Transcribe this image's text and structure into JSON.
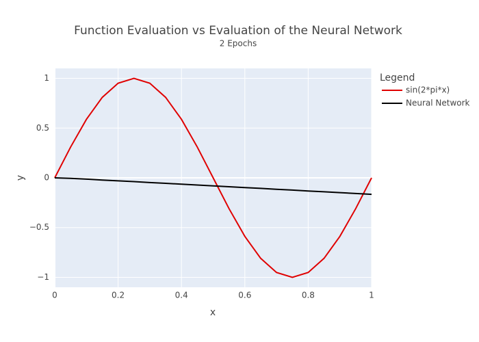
{
  "chart_data": {
    "type": "line",
    "title": "Function Evaluation vs Evaluation of the Neural Network",
    "subtitle": "2 Epochs",
    "x_label": "x",
    "y_label": "y",
    "legend_title": "Legend",
    "legend_position": "right",
    "x": [
      0,
      0.05,
      0.1,
      0.15,
      0.2,
      0.25,
      0.3,
      0.35,
      0.4,
      0.45,
      0.5,
      0.55,
      0.6,
      0.65,
      0.7,
      0.75,
      0.8,
      0.85,
      0.9,
      0.95,
      1
    ],
    "series": [
      {
        "name": "sin(2*pi*x)",
        "color": "#e00000",
        "values": [
          0,
          0.309,
          0.588,
          0.809,
          0.951,
          1,
          0.951,
          0.809,
          0.588,
          0.309,
          0,
          -0.309,
          -0.588,
          -0.809,
          -0.951,
          -1,
          -0.951,
          -0.809,
          -0.588,
          -0.309,
          0
        ]
      },
      {
        "name": "Neural Network",
        "color": "#000000",
        "values": [
          0,
          -0.005,
          -0.013,
          -0.022,
          -0.03,
          -0.038,
          -0.047,
          -0.055,
          -0.064,
          -0.072,
          -0.081,
          -0.089,
          -0.098,
          -0.106,
          -0.115,
          -0.123,
          -0.132,
          -0.14,
          -0.149,
          -0.157,
          -0.166
        ]
      }
    ],
    "xlim": [
      0,
      1
    ],
    "xticks": [
      0,
      0.2,
      0.4,
      0.6,
      0.8,
      1
    ],
    "ylim": [
      -1.1,
      1.1
    ],
    "yticks": [
      {
        "value": -1,
        "label": "−1"
      },
      {
        "value": -0.5,
        "label": "−0.5"
      },
      0,
      0.5,
      1
    ],
    "grid": true
  }
}
